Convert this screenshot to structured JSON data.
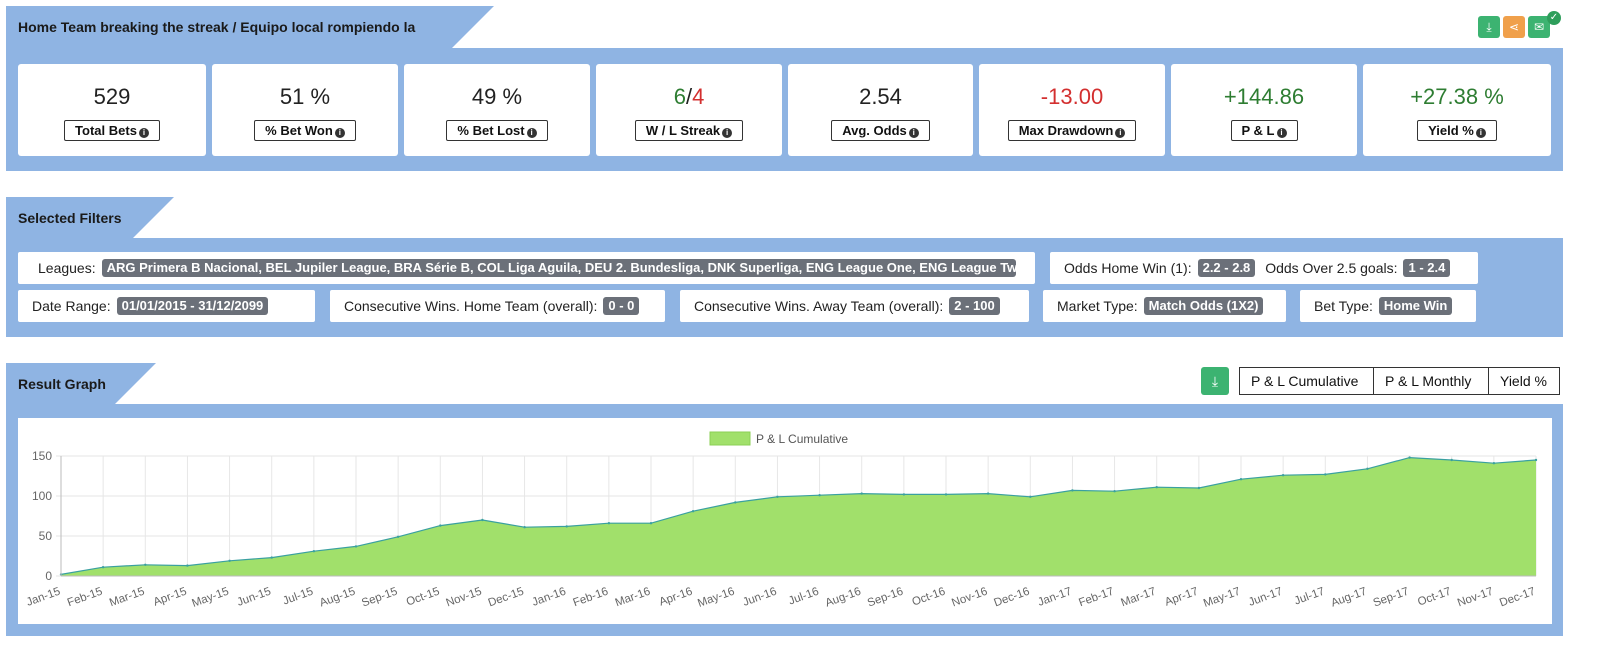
{
  "header": {
    "title": "Home Team breaking the streak / Equipo local rompiendo la racha",
    "actions": [
      {
        "icon": "download-icon",
        "color": "#3cb371"
      },
      {
        "icon": "share-icon",
        "color": "#f0a04b"
      },
      {
        "icon": "email-icon",
        "color": "#3cb371"
      }
    ]
  },
  "stats": [
    {
      "value": "529",
      "label": "Total Bets",
      "tone": "neutral"
    },
    {
      "value": "51 %",
      "label": "% Bet Won",
      "tone": "neutral"
    },
    {
      "value": "49 %",
      "label": "% Bet Lost",
      "tone": "neutral"
    },
    {
      "value_win": "6",
      "value_sep": "/",
      "value_loss": "4",
      "label": "W / L Streak",
      "tone": "split"
    },
    {
      "value": "2.54",
      "label": "Avg. Odds",
      "tone": "neutral"
    },
    {
      "value": "-13.00",
      "label": "Max Drawdown",
      "tone": "neg"
    },
    {
      "value": "+144.86",
      "label": "P & L",
      "tone": "pos"
    },
    {
      "value": "+27.38 %",
      "label": "Yield %",
      "tone": "pos"
    }
  ],
  "filters": {
    "title": "Selected Filters",
    "leagues": {
      "label": "Leagues:",
      "value": "ARG Primera B Nacional, BEL Jupiler League, BRA Série B, COL Liga Aguila, DEU 2. Bundesliga, DNK Superliga, ENG League One, ENG League Two ..."
    },
    "odds_home": {
      "label": "Odds Home Win (1):",
      "value": "2.2 - 2.8"
    },
    "odds_over": {
      "label": "Odds Over 2.5 goals:",
      "value": "1 - 2.4"
    },
    "date_range": {
      "label": "Date Range:",
      "value": "01/01/2015 - 31/12/2099"
    },
    "cons_home": {
      "label": "Consecutive Wins. Home Team (overall):",
      "value": "0 - 0"
    },
    "cons_away": {
      "label": "Consecutive Wins. Away Team (overall):",
      "value": "2 - 100"
    },
    "market": {
      "label": "Market Type:",
      "value": "Match Odds (1X2)"
    },
    "bet_type": {
      "label": "Bet Type:",
      "value": "Home Win"
    }
  },
  "result": {
    "title": "Result Graph",
    "tabs": [
      "P & L Cumulative",
      "P & L Monthly",
      "Yield %"
    ],
    "active_tab": 0
  },
  "chart_data": {
    "type": "area",
    "series": [
      {
        "name": "P & L Cumulative",
        "color": "#a1e06b",
        "line": "#3aa0a0"
      }
    ],
    "x": [
      "Jan-15",
      "Feb-15",
      "Mar-15",
      "Apr-15",
      "May-15",
      "Jun-15",
      "Jul-15",
      "Aug-15",
      "Sep-15",
      "Oct-15",
      "Nov-15",
      "Dec-15",
      "Jan-16",
      "Feb-16",
      "Mar-16",
      "Apr-16",
      "May-16",
      "Jun-16",
      "Jul-16",
      "Aug-16",
      "Sep-16",
      "Oct-16",
      "Nov-16",
      "Dec-16",
      "Jan-17",
      "Feb-17",
      "Mar-17",
      "Apr-17",
      "May-17",
      "Jun-17",
      "Jul-17",
      "Aug-17",
      "Sep-17",
      "Oct-17",
      "Nov-17",
      "Dec-17"
    ],
    "values": [
      2,
      11,
      14,
      13,
      19,
      23,
      31,
      37,
      49,
      63,
      70,
      61,
      62,
      66,
      66,
      81,
      92,
      99,
      101,
      103,
      102,
      102,
      103,
      99,
      107,
      106,
      111,
      110,
      121,
      126,
      127,
      134,
      148,
      145,
      141,
      145
    ],
    "yticks": [
      0,
      50,
      100,
      150
    ],
    "ylim": [
      0,
      150
    ],
    "grid": true,
    "legend": "top-center"
  }
}
